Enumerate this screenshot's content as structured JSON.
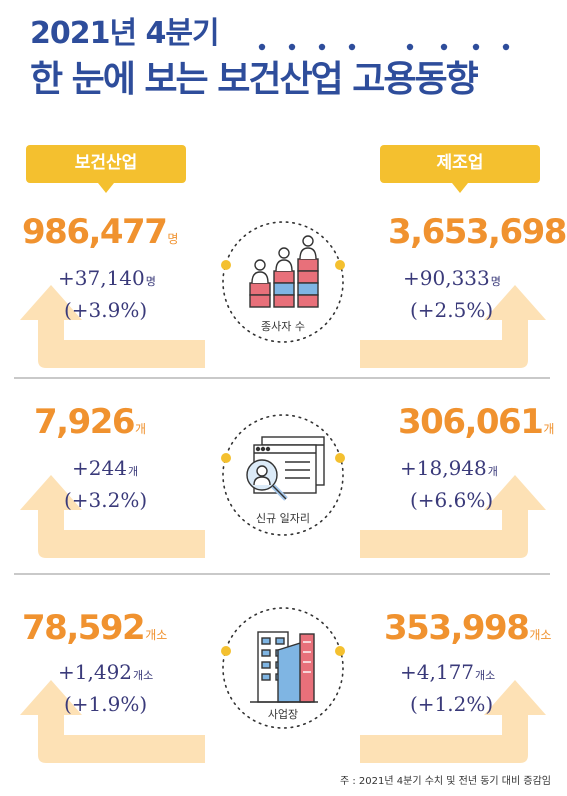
{
  "header": {
    "line1": "2021년 4분기",
    "line2": "한 눈에 보는 보건산업 고용동향"
  },
  "columns": {
    "left": "보건산업",
    "right": "제조업"
  },
  "sections": [
    {
      "label": "종사자 수",
      "icon": "people-chart-icon",
      "left": {
        "value": "986,477",
        "unit": "명",
        "change": "+37,140",
        "change_unit": "명",
        "rate": "(+3.9%)"
      },
      "right": {
        "value": "3,653,698",
        "unit": "명",
        "change": "+90,333",
        "change_unit": "명",
        "rate": "(+2.5%)"
      }
    },
    {
      "label": "신규 일자리",
      "icon": "job-search-icon",
      "left": {
        "value": "7,926",
        "unit": "개",
        "change": "+244",
        "change_unit": "개",
        "rate": "(+3.2%)"
      },
      "right": {
        "value": "306,061",
        "unit": "개",
        "change": "+18,948",
        "change_unit": "개",
        "rate": "(+6.6%)"
      }
    },
    {
      "label": "사업장",
      "icon": "buildings-icon",
      "left": {
        "value": "78,592",
        "unit": "개소",
        "change": "+1,492",
        "change_unit": "개소",
        "rate": "(+1.9%)"
      },
      "right": {
        "value": "353,998",
        "unit": "개소",
        "change": "+4,177",
        "change_unit": "개소",
        "rate": "(+1.2%)"
      }
    }
  ],
  "footnote": "주 : 2021년 4분기 수치 및 전년 동기 대비 증감임",
  "colors": {
    "title": "#2e4d9b",
    "accent": "#f0922f",
    "banner": "#f4c02f",
    "arrow": "#fde1b5",
    "dot": "#f4c02f"
  }
}
